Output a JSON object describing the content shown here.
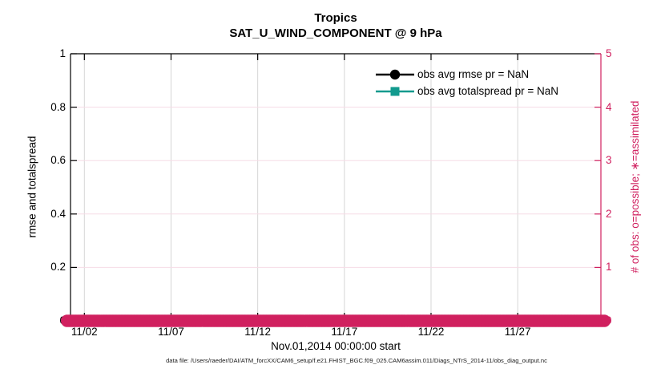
{
  "chart_data": {
    "type": "line",
    "title": "Tropics",
    "subtitle": "SAT_U_WIND_COMPONENT @ 9 hPa",
    "xlabel": "Nov.01,2014 00:00:00 start",
    "ylabel_left": "rmse and totalspread",
    "ylabel_right": "# of obs: o=possible; ∗=assimilated",
    "footer": "data file: /Users/raeder/DAI/ATM_forcXX/CAM6_setup/f.e21.FHIST_BGC.f09_025.CAM6assim.011/Diags_NTrS_2014-11/obs_diag_output.nc",
    "left_axis": {
      "label": "rmse and totalspread",
      "min": 0,
      "max": 1,
      "tick_labels": [
        "0",
        "0.2",
        "0.4",
        "0.6",
        "0.8",
        "1"
      ],
      "tick_values": [
        0,
        0.2,
        0.4,
        0.6,
        0.8,
        1
      ],
      "color": "#000000"
    },
    "right_axis": {
      "label": "# of obs: o=possible; ∗=assimilated",
      "min": 0,
      "max": 5,
      "tick_labels": [
        "0",
        "1",
        "2",
        "3",
        "4",
        "5"
      ],
      "tick_values": [
        0,
        1,
        2,
        3,
        4,
        5
      ],
      "color": "#d0205f"
    },
    "x_axis": {
      "tick_labels": [
        "11/02",
        "11/07",
        "11/12",
        "11/17",
        "11/22",
        "11/27"
      ],
      "tick_days": [
        1,
        6,
        11,
        16,
        21,
        26
      ],
      "range_days": [
        0.2,
        30.8
      ],
      "color": "#000000"
    },
    "series": [
      {
        "label": "obs avg rmse pr = NaN",
        "color": "#000000",
        "marker": "circle",
        "plotted": false
      },
      {
        "label": "obs avg totalspread pr = NaN",
        "color": "#119a8e",
        "marker": "square",
        "plotted": false
      }
    ],
    "obs_band": {
      "description": "o=possible observation markers, all at count 0",
      "value": 0,
      "start_day": 0,
      "end_day": 31,
      "step_days": 0.125,
      "color": "#d0205f",
      "marker": "open-circle"
    },
    "grid": {
      "vertical_color": "#d6d6d6",
      "horizontal_color": "#f6dbe6",
      "on": true
    }
  }
}
